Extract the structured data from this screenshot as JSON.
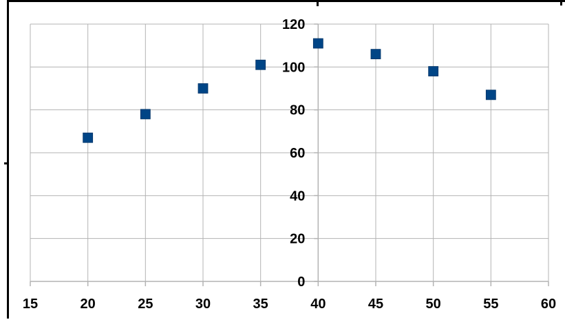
{
  "chart_data": {
    "type": "scatter",
    "title": "",
    "xlabel": "",
    "ylabel": "",
    "xlim": [
      15,
      60
    ],
    "ylim": [
      0,
      120
    ],
    "xticks": [
      15,
      20,
      25,
      30,
      35,
      40,
      45,
      50,
      55,
      60
    ],
    "yticks": [
      0,
      20,
      40,
      60,
      80,
      100,
      120
    ],
    "grid": true,
    "legend": "none",
    "y_axis_crosses_at_x": 40,
    "series": [
      {
        "x": [
          20,
          25,
          30,
          35,
          40,
          45,
          50,
          55
        ],
        "y": [
          67,
          78,
          90,
          101,
          111,
          106,
          98,
          87
        ],
        "marker": "square",
        "color": "#004586"
      }
    ]
  },
  "colors": {
    "grid": "#b3b3b3",
    "axis": "#b3b3b3",
    "marker": "#004586",
    "frame": "#000000"
  }
}
